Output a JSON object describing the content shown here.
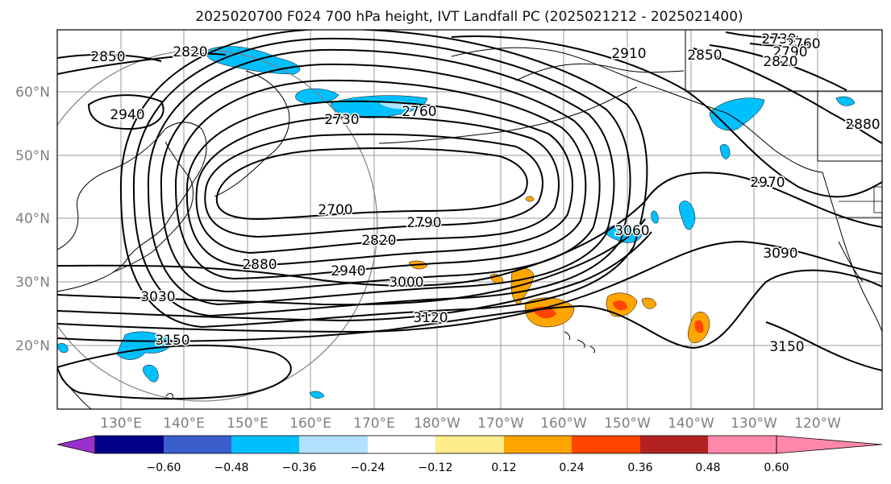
{
  "title": "2025020700 F024 700 hPa height, IVT Landfall PC (2025021212 - 2025021400)",
  "lat_labels": [
    "60°N",
    "50°N",
    "40°N",
    "30°N",
    "20°N"
  ],
  "lon_labels": [
    "130°E",
    "140°E",
    "150°E",
    "160°E",
    "170°E",
    "180°W",
    "170°W",
    "160°W",
    "150°W",
    "140°W",
    "130°W",
    "120°W"
  ],
  "contour_labels": [
    "2850",
    "2820",
    "2940",
    "2730",
    "2760",
    "2910",
    "2850",
    "2730",
    "2760",
    "2790",
    "2820",
    "2880",
    "2970",
    "2700",
    "2790",
    "2820",
    "3060",
    "2880",
    "2940",
    "3000",
    "3090",
    "3030",
    "3120",
    "3150",
    "3150"
  ],
  "colorbar": {
    "ticks": [
      "−0.60",
      "−0.48",
      "−0.36",
      "−0.24",
      "−0.12",
      "0.12",
      "0.24",
      "0.36",
      "0.48",
      "0.60"
    ],
    "colors": [
      "#9932cc",
      "#00008b",
      "#3a5fcd",
      "#00bfff",
      "#b0e2ff",
      "#ffffff",
      "#ffec8b",
      "#ffa500",
      "#ff4500",
      "#b22222",
      "#ff88aa"
    ]
  }
}
